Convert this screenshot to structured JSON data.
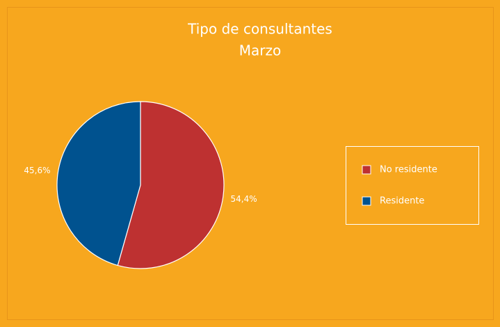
{
  "chart_data": {
    "type": "pie",
    "title": "Tipo de consultantes",
    "subtitle": "Marzo",
    "categories": [
      "No residente",
      "Residente"
    ],
    "values": [
      54.4,
      45.6
    ],
    "value_labels": [
      "54,4%",
      "45,6%"
    ],
    "colors": [
      "#BE3131",
      "#00528F"
    ],
    "start_angle": 0,
    "direction": "clockwise",
    "legend": "right"
  }
}
